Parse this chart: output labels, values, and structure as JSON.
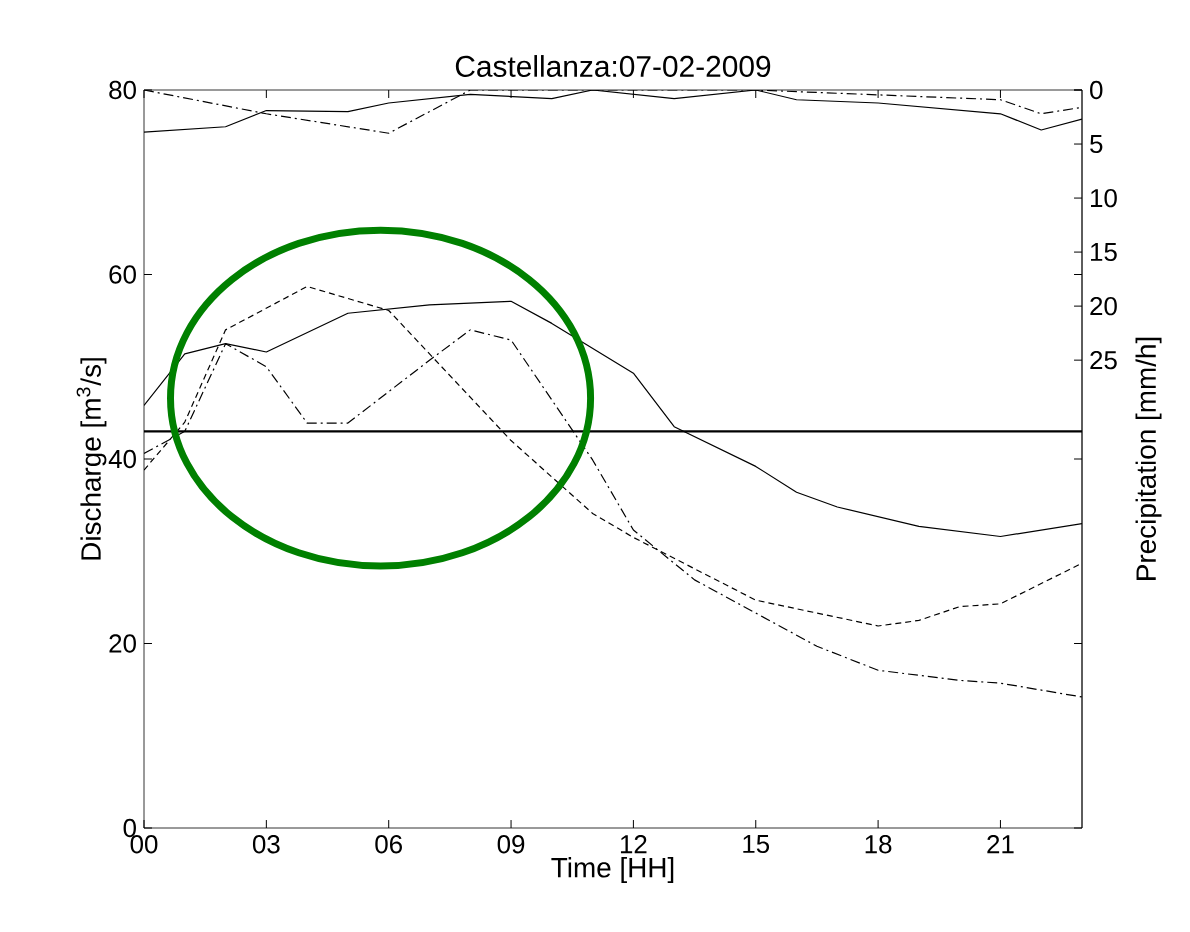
{
  "chart_data": {
    "type": "line",
    "title": "Castellanza:07-02-2009",
    "xlabel": "Time [HH]",
    "ylabel": "Discharge [m$^{3}$/s]",
    "y2label": "Precipitation [mm/h]",
    "xlim": [
      0,
      23
    ],
    "xticks": [
      {
        "value": 0,
        "label": "00"
      },
      {
        "value": 3,
        "label": "03"
      },
      {
        "value": 6,
        "label": "06"
      },
      {
        "value": 9,
        "label": "09"
      },
      {
        "value": 12,
        "label": "12"
      },
      {
        "value": 15,
        "label": "15"
      },
      {
        "value": 18,
        "label": "18"
      },
      {
        "value": 21,
        "label": "21"
      }
    ],
    "ylim": [
      0,
      80
    ],
    "yticks": [
      0,
      20,
      40,
      60,
      80
    ],
    "y2lim": [
      68.3,
      0
    ],
    "y2ticks": [
      0,
      5,
      10,
      15,
      20,
      25
    ],
    "grid": false,
    "marker": "none",
    "ref_lines": [
      {
        "axis": "y",
        "value": 43,
        "color": "#000000",
        "line_style": "solid"
      }
    ],
    "series": [
      {
        "color": "#000000",
        "line_style": "solid",
        "x": [
          0,
          1,
          2,
          3,
          5,
          7,
          9,
          10,
          12,
          13,
          15,
          16,
          17,
          19,
          21,
          23
        ],
        "values": [
          45.8,
          51.4,
          52.5,
          51.6,
          55.8,
          56.7,
          57.1,
          54.7,
          49.3,
          43.5,
          39.2,
          36.4,
          34.8,
          32.7,
          31.6,
          33.0
        ]
      },
      {
        "color": "#000000",
        "line_style": "dashed",
        "x": [
          0,
          1,
          2,
          4,
          6,
          9,
          11,
          12,
          15,
          18,
          19,
          20,
          21,
          23
        ],
        "values": [
          38.8,
          44,
          54,
          58.7,
          56.1,
          42,
          34.1,
          31.5,
          24.7,
          21.9,
          22.5,
          24,
          24.3,
          28.7
        ]
      },
      {
        "color": "#000000",
        "line_style": "dashdot",
        "x": [
          0,
          1,
          2,
          3,
          4,
          5,
          7,
          8,
          9,
          10,
          11,
          12,
          13.5,
          15,
          16.5,
          18,
          20,
          21,
          23
        ],
        "values": [
          40.6,
          43,
          52.5,
          50,
          43.9,
          43.9,
          50.7,
          54,
          52.9,
          46.4,
          39.9,
          32.3,
          26.9,
          23.3,
          19.7,
          17.1,
          16,
          15.7,
          14.2
        ]
      },
      {
        "color": "#000000",
        "line_style": "solid",
        "axis": "y2",
        "x": [
          0,
          2,
          3,
          5,
          6,
          8,
          10,
          11,
          13,
          15,
          16,
          18,
          21,
          22,
          23
        ],
        "values": [
          3.9,
          3.4,
          1.9,
          2.0,
          1.2,
          0.4,
          0.8,
          0,
          0.8,
          0,
          0.9,
          1.2,
          2.2,
          3.7,
          2.7
        ]
      },
      {
        "color": "#000000",
        "line_style": "dashdot",
        "axis": "y2",
        "x": [
          0,
          3,
          6,
          8,
          15,
          21,
          22,
          23
        ],
        "values": [
          0,
          2.2,
          4.0,
          0,
          0,
          0.9,
          2.2,
          1.6
        ]
      }
    ]
  }
}
